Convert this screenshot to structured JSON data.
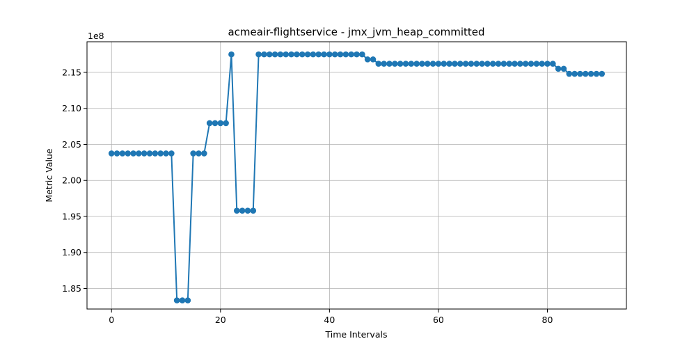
{
  "chart_data": {
    "type": "line",
    "title": "acmeair-flightservice - jmx_jvm_heap_committed",
    "xlabel": "Time Intervals",
    "ylabel": "Metric Value",
    "offset_label": "1e8",
    "xlim": [
      -4.5,
      94.5
    ],
    "ylim": [
      1.8215,
      2.1925
    ],
    "xticks": [
      0,
      20,
      40,
      60,
      80
    ],
    "yticks": [
      1.85,
      1.9,
      1.95,
      2.0,
      2.05,
      2.1,
      2.15
    ],
    "ytick_labels": [
      "1.85",
      "1.90",
      "1.95",
      "2.00",
      "2.05",
      "2.10",
      "2.15"
    ],
    "grid": true,
    "line_color": "#1f77b4",
    "series": [
      {
        "x": [
          0,
          1,
          2,
          3,
          4,
          5,
          6,
          7,
          8,
          9,
          10,
          11,
          12,
          13,
          14,
          15,
          16,
          17,
          18,
          19,
          20,
          21,
          22,
          23,
          24,
          25,
          26,
          27,
          28,
          29,
          30,
          31,
          32,
          33,
          34,
          35,
          36,
          37,
          38,
          39,
          40,
          41,
          42,
          43,
          44,
          45,
          46,
          47,
          48,
          49,
          50,
          51,
          52,
          53,
          54,
          55,
          56,
          57,
          58,
          59,
          60,
          61,
          62,
          63,
          64,
          65,
          66,
          67,
          68,
          69,
          70,
          71,
          72,
          73,
          74,
          75,
          76,
          77,
          78,
          79,
          80,
          81,
          82,
          83,
          84,
          85,
          86,
          87,
          88,
          89,
          90
        ],
        "values": [
          2.0375,
          2.0375,
          2.0375,
          2.0375,
          2.0375,
          2.0375,
          2.0375,
          2.0375,
          2.0375,
          2.0375,
          2.0375,
          2.0375,
          1.8335,
          1.8335,
          1.8335,
          2.0375,
          2.0375,
          2.0375,
          2.0795,
          2.0795,
          2.0795,
          2.0795,
          2.175,
          1.958,
          1.958,
          1.958,
          1.958,
          2.175,
          2.175,
          2.175,
          2.175,
          2.175,
          2.175,
          2.175,
          2.175,
          2.175,
          2.175,
          2.175,
          2.175,
          2.175,
          2.175,
          2.175,
          2.175,
          2.175,
          2.175,
          2.175,
          2.175,
          2.168,
          2.168,
          2.162,
          2.162,
          2.162,
          2.162,
          2.162,
          2.162,
          2.162,
          2.162,
          2.162,
          2.162,
          2.162,
          2.162,
          2.162,
          2.162,
          2.162,
          2.162,
          2.162,
          2.162,
          2.162,
          2.162,
          2.162,
          2.162,
          2.162,
          2.162,
          2.162,
          2.162,
          2.162,
          2.162,
          2.162,
          2.162,
          2.162,
          2.162,
          2.162,
          2.155,
          2.155,
          2.148,
          2.148,
          2.148,
          2.148,
          2.148,
          2.148,
          2.148
        ]
      }
    ]
  }
}
